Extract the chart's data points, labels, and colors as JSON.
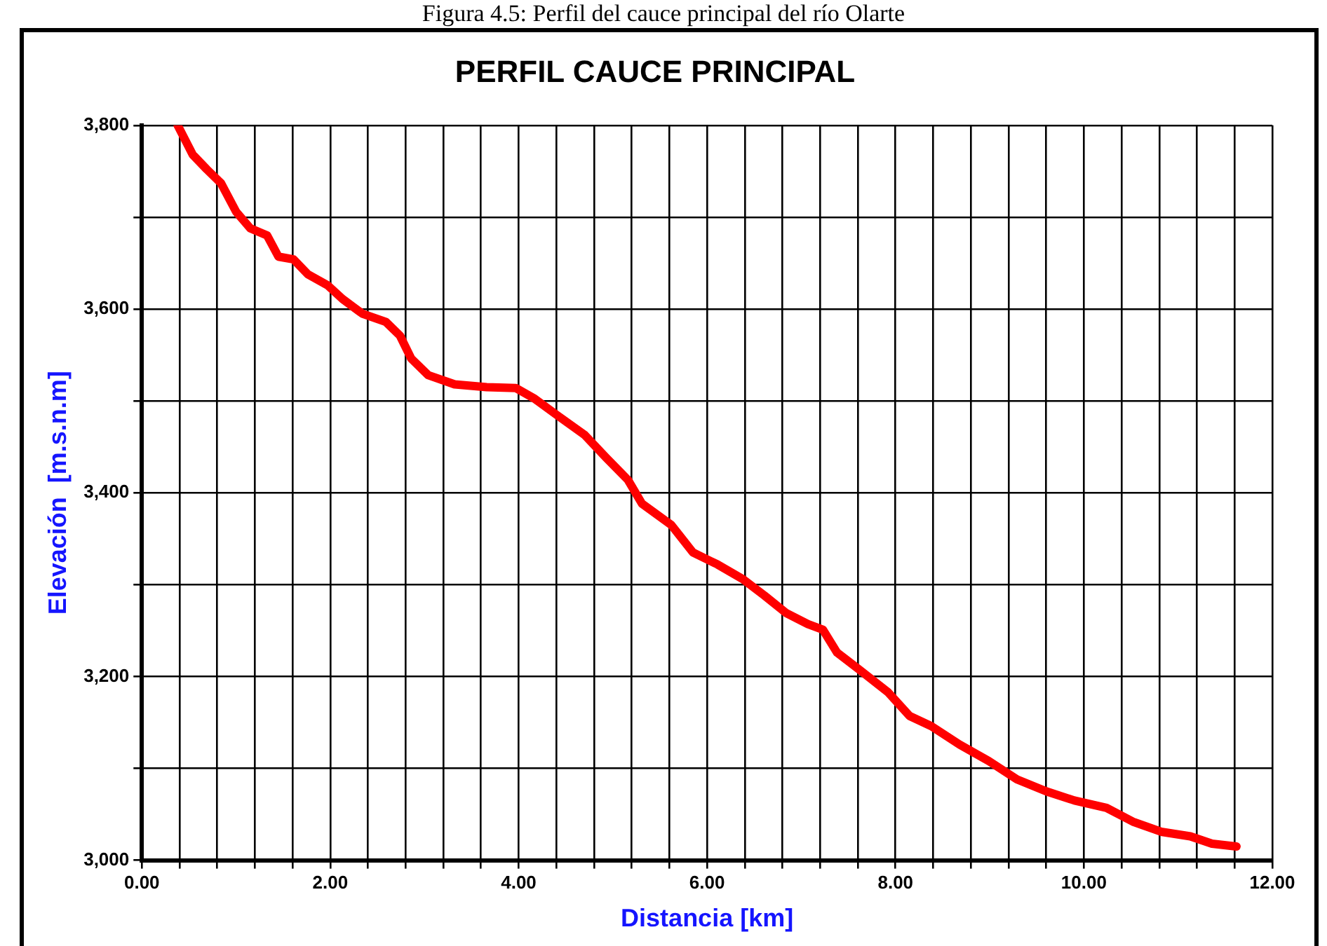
{
  "chart_data": {
    "type": "line",
    "title": "PERFIL CAUCE PRINCIPAL",
    "xlabel": "Distancia [km]",
    "ylabel": "Elevación  [m.s.n.m]",
    "annotations": [
      "Figura 4.5: Perfil del cauce principal del río Olarte"
    ],
    "x": [
      0.38,
      0.54,
      0.69,
      0.84,
      1.0,
      1.15,
      1.33,
      1.45,
      1.61,
      1.76,
      1.97,
      2.13,
      2.34,
      2.59,
      2.74,
      2.86,
      3.04,
      3.32,
      3.66,
      3.97,
      4.16,
      4.4,
      4.7,
      4.93,
      5.16,
      5.31,
      5.62,
      5.85,
      6.11,
      6.38,
      6.61,
      6.84,
      7.07,
      7.23,
      7.38,
      7.61,
      7.92,
      8.15,
      8.38,
      8.68,
      8.99,
      9.29,
      9.6,
      9.9,
      10.24,
      10.52,
      10.82,
      11.13,
      11.36,
      11.62
    ],
    "series": [
      {
        "color": "#ff0000",
        "values": [
          3800,
          3768,
          3752,
          3737,
          3706,
          3688,
          3680,
          3657,
          3654,
          3638,
          3626,
          3611,
          3595,
          3586,
          3571,
          3546,
          3528,
          3518,
          3515,
          3514,
          3503,
          3485,
          3463,
          3438,
          3414,
          3388,
          3365,
          3335,
          3322,
          3306,
          3288,
          3269,
          3257,
          3251,
          3226,
          3208,
          3183,
          3157,
          3146,
          3126,
          3108,
          3088,
          3075,
          3065,
          3057,
          3042,
          3031,
          3026,
          3018,
          3015
        ]
      }
    ],
    "xlim": [
      0,
      12
    ],
    "xticks": [
      {
        "value": 0,
        "label": "0.00"
      },
      {
        "value": 0.4,
        "label": null
      },
      {
        "value": 0.8,
        "label": null
      },
      {
        "value": 1.2,
        "label": null
      },
      {
        "value": 1.6,
        "label": null
      },
      {
        "value": 2,
        "label": "2.00"
      },
      {
        "value": 2.4,
        "label": null
      },
      {
        "value": 2.8,
        "label": null
      },
      {
        "value": 3.2,
        "label": null
      },
      {
        "value": 3.6,
        "label": null
      },
      {
        "value": 4,
        "label": "4.00"
      },
      {
        "value": 4.4,
        "label": null
      },
      {
        "value": 4.8,
        "label": null
      },
      {
        "value": 5.2,
        "label": null
      },
      {
        "value": 5.6,
        "label": null
      },
      {
        "value": 6,
        "label": "6.00"
      },
      {
        "value": 6.4,
        "label": null
      },
      {
        "value": 6.8,
        "label": null
      },
      {
        "value": 7.2,
        "label": null
      },
      {
        "value": 7.6,
        "label": null
      },
      {
        "value": 8,
        "label": "8.00"
      },
      {
        "value": 8.4,
        "label": null
      },
      {
        "value": 8.8,
        "label": null
      },
      {
        "value": 9.2,
        "label": null
      },
      {
        "value": 9.6,
        "label": null
      },
      {
        "value": 10,
        "label": "10.00"
      },
      {
        "value": 10.4,
        "label": null
      },
      {
        "value": 10.8,
        "label": null
      },
      {
        "value": 11.2,
        "label": null
      },
      {
        "value": 11.6,
        "label": null
      },
      {
        "value": 12,
        "label": "12.00"
      }
    ],
    "ylim": [
      3000,
      3800
    ],
    "yticks": [
      {
        "value": 3000,
        "label": "3,000"
      },
      {
        "value": 3100,
        "label": null
      },
      {
        "value": 3200,
        "label": "3,200"
      },
      {
        "value": 3300,
        "label": null
      },
      {
        "value": 3400,
        "label": "3,400"
      },
      {
        "value": 3500,
        "label": null
      },
      {
        "value": 3600,
        "label": "3,600"
      },
      {
        "value": 3700,
        "label": null
      },
      {
        "value": 3800,
        "label": "3,800"
      }
    ],
    "grid": true,
    "marker": "none",
    "line_style": "solid",
    "legend": false
  }
}
